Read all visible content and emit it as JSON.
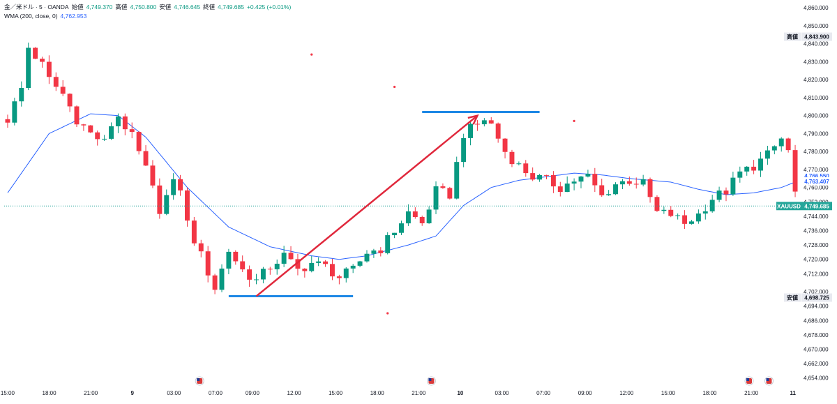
{
  "header": {
    "symbol_line": "金／米ドル · 5 · OANDA",
    "open_label": "始値",
    "open_value": "4,749.370",
    "high_label": "高値",
    "high_value": "4,750.800",
    "low_label": "安値",
    "low_value": "4,746.645",
    "close_label": "終値",
    "close_value": "4,749.685",
    "change": "+0.425 (+0.01%)",
    "indicator_label": "WMA (200, close, 0)",
    "indicator_value": "4,762.953"
  },
  "colors": {
    "up": "#089981",
    "down": "#f23645",
    "wma": "#2962ff",
    "arrow": "#e0283c",
    "level_line": "#1e88e5",
    "price_line": "#26a69a"
  },
  "markers": {
    "high_tag_label": "高値",
    "high_tag_value": "4,843.900",
    "low_tag_label": "安値",
    "low_tag_value": "4,698.725",
    "wma_tag_1": "4,766.550",
    "wma_tag_2": "4,763.407",
    "symbol_tag": "XAUUSD",
    "last_price_tag": "4,749.685"
  },
  "chart_data": {
    "type": "candlestick",
    "symbol": "XAUUSD",
    "timeframe": "5",
    "ylim": [
      4650,
      4862
    ],
    "y_ticks": [
      "4,860.000",
      "4,850.000",
      "4,840.000",
      "4,830.000",
      "4,820.000",
      "4,810.000",
      "4,800.000",
      "4,790.000",
      "4,780.000",
      "4,770.000",
      "4,760.000",
      "4,752.000",
      "4,744.000",
      "4,736.000",
      "4,728.000",
      "4,720.000",
      "4,712.000",
      "4,702.000",
      "4,694.000",
      "4,686.000",
      "4,678.000",
      "4,670.000",
      "4,662.000",
      "4,654.000"
    ],
    "x_ticks": [
      "15:00",
      "18:00",
      "21:00",
      "9",
      "03:00",
      "07:00",
      "09:00",
      "12:00",
      "15:00",
      "18:00",
      "21:00",
      "10",
      "03:00",
      "07:00",
      "09:00",
      "12:00",
      "15:00",
      "18:00",
      "21:00",
      "11"
    ],
    "price_path": [
      [
        0,
        4798
      ],
      [
        2,
        4815
      ],
      [
        3,
        4838
      ],
      [
        5,
        4828
      ],
      [
        6,
        4820
      ],
      [
        8,
        4812
      ],
      [
        10,
        4798
      ],
      [
        12,
        4790
      ],
      [
        14,
        4785
      ],
      [
        15,
        4795
      ],
      [
        16,
        4800
      ],
      [
        18,
        4788
      ],
      [
        20,
        4770
      ],
      [
        22,
        4748
      ],
      [
        24,
        4762
      ],
      [
        25,
        4760
      ],
      [
        26,
        4740
      ],
      [
        28,
        4722
      ],
      [
        30,
        4704
      ],
      [
        32,
        4725
      ],
      [
        34,
        4714
      ],
      [
        36,
        4708
      ],
      [
        38,
        4716
      ],
      [
        40,
        4722
      ],
      [
        42,
        4714
      ],
      [
        44,
        4718
      ],
      [
        46,
        4716
      ],
      [
        48,
        4710
      ],
      [
        50,
        4714
      ],
      [
        52,
        4724
      ],
      [
        54,
        4726
      ],
      [
        56,
        4736
      ],
      [
        58,
        4746
      ],
      [
        60,
        4740
      ],
      [
        62,
        4758
      ],
      [
        64,
        4756
      ],
      [
        66,
        4790
      ],
      [
        68,
        4795
      ],
      [
        69,
        4798
      ],
      [
        70,
        4795
      ],
      [
        72,
        4780
      ],
      [
        74,
        4772
      ],
      [
        76,
        4766
      ],
      [
        78,
        4764
      ],
      [
        80,
        4760
      ],
      [
        82,
        4764
      ],
      [
        84,
        4766
      ],
      [
        86,
        4755
      ],
      [
        88,
        4762
      ],
      [
        90,
        4764
      ],
      [
        92,
        4762
      ],
      [
        94,
        4746
      ],
      [
        96,
        4745
      ],
      [
        98,
        4740
      ],
      [
        100,
        4745
      ],
      [
        102,
        4754
      ],
      [
        104,
        4758
      ],
      [
        106,
        4768
      ],
      [
        108,
        4772
      ],
      [
        110,
        4778
      ],
      [
        112,
        4787
      ],
      [
        113,
        4780
      ],
      [
        114,
        4757
      ]
    ],
    "wma_path": [
      [
        0,
        4757
      ],
      [
        6,
        4790
      ],
      [
        12,
        4801
      ],
      [
        16,
        4800
      ],
      [
        20,
        4788
      ],
      [
        26,
        4760
      ],
      [
        32,
        4738
      ],
      [
        38,
        4727
      ],
      [
        44,
        4722
      ],
      [
        48,
        4720
      ],
      [
        52,
        4722
      ],
      [
        58,
        4728
      ],
      [
        62,
        4733
      ],
      [
        66,
        4750
      ],
      [
        70,
        4760
      ],
      [
        74,
        4764
      ],
      [
        78,
        4766
      ],
      [
        82,
        4768
      ],
      [
        86,
        4767
      ],
      [
        90,
        4765
      ],
      [
        96,
        4763
      ],
      [
        100,
        4759
      ],
      [
        104,
        4756
      ],
      [
        108,
        4757
      ],
      [
        112,
        4760
      ],
      [
        114,
        4763
      ]
    ],
    "dots": [
      [
        44,
        4834
      ],
      [
        56,
        4816
      ],
      [
        82,
        4797
      ],
      [
        55,
        4690
      ]
    ],
    "horizontal_segments": [
      [
        32,
        50,
        4699.5
      ],
      [
        60,
        77,
        4802
      ]
    ],
    "arrow": [
      [
        36,
        4699.5
      ],
      [
        68,
        4800
      ]
    ],
    "last_price": 4749.685,
    "high": 4843.9,
    "low": 4698.725,
    "wma_value": 4762.953
  }
}
